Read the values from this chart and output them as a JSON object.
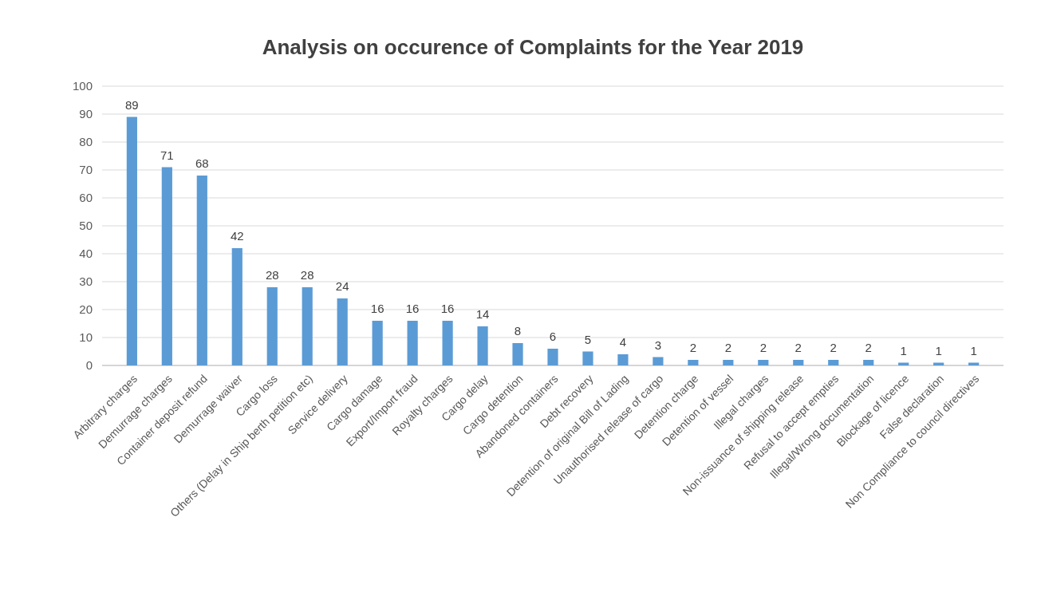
{
  "chart_data": {
    "type": "bar",
    "title": "Analysis on occurence of Complaints for the Year 2019",
    "categories": [
      "Arbitrary charges",
      "Demurrage charges",
      "Container deposit refund",
      "Demurrage waiver",
      "Cargo loss",
      "Others (Delay in Ship berth petition etc)",
      "Service delivery",
      "Cargo damage",
      "Export/Import fraud",
      "Royalty charges",
      "Cargo delay",
      "Cargo detention",
      "Abandoned containers",
      "Debt recovery",
      "Detention of original Bill of Lading",
      "Unauthorised release of cargo",
      "Detention charge",
      "Detention of vessel",
      "Illegal charges",
      "Non-issuance of shipping release",
      "Refusal to accept empties",
      "Illegal/Wrong documentation",
      "Blockage of licence",
      "False declaration",
      "Non Compliance to council directives"
    ],
    "values": [
      89,
      71,
      68,
      42,
      28,
      28,
      24,
      16,
      16,
      16,
      14,
      8,
      6,
      5,
      4,
      3,
      2,
      2,
      2,
      2,
      2,
      2,
      1,
      1,
      1
    ],
    "color": "#5b9bd5",
    "ylim": [
      0,
      100
    ],
    "yticks": [
      0,
      10,
      20,
      30,
      40,
      50,
      60,
      70,
      80,
      90,
      100
    ],
    "grid": "y",
    "data_labels": true
  }
}
